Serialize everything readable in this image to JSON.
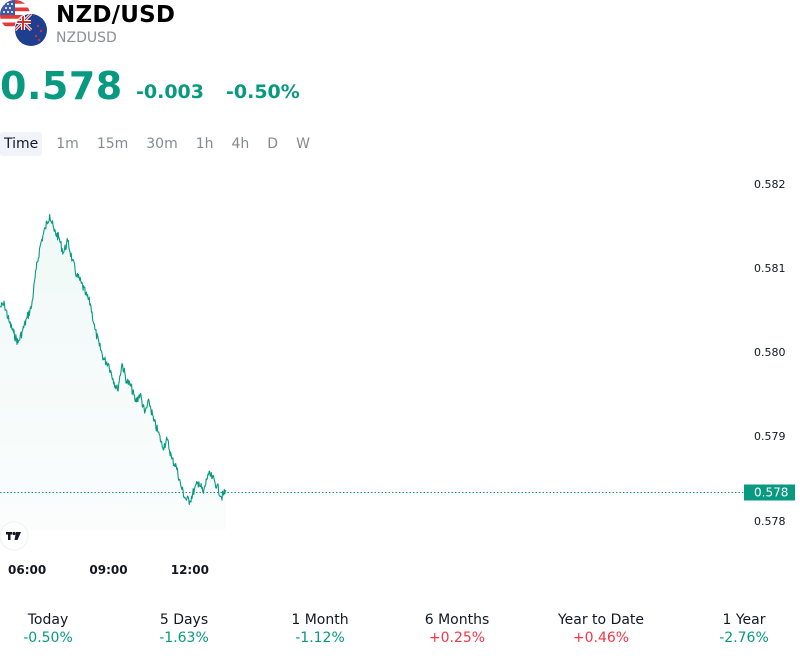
{
  "header": {
    "title": "NZD/USD",
    "symbol": "NZDUSD",
    "icons": [
      "us-flag-icon",
      "nz-flag-icon"
    ]
  },
  "quote": {
    "price": "0.578",
    "change": "-0.003",
    "change_pct": "-0.50%",
    "color": "#089981"
  },
  "timeframes": [
    {
      "label": "Time",
      "active": true
    },
    {
      "label": "1m"
    },
    {
      "label": "15m"
    },
    {
      "label": "30m"
    },
    {
      "label": "1h"
    },
    {
      "label": "4h"
    },
    {
      "label": "D"
    },
    {
      "label": "W"
    }
  ],
  "chart_data": {
    "type": "area",
    "y_ticks": [
      "0.582",
      "0.581",
      "0.580",
      "0.579",
      "0.578"
    ],
    "x_ticks": [
      "06:00",
      "09:00",
      "12:00"
    ],
    "ylim": [
      0.5778,
      0.5822
    ],
    "last_price_label": "0.578",
    "last_price": 0.57816,
    "line_color": "#089981",
    "grid": false,
    "logo_icon": "tradingview-logo-icon",
    "series": [
      {
        "x": [
          "05:00",
          "05:10",
          "05:20",
          "05:30",
          "05:40",
          "05:50",
          "06:00",
          "06:10",
          "06:20",
          "06:30",
          "06:40",
          "06:50",
          "07:00",
          "07:10",
          "07:20",
          "07:30",
          "07:40",
          "07:50",
          "08:00",
          "08:10",
          "08:20",
          "08:30",
          "08:40",
          "08:50",
          "09:00",
          "09:10",
          "09:20",
          "09:30",
          "09:40",
          "09:50",
          "10:00",
          "10:10",
          "10:20",
          "10:30",
          "10:40",
          "10:50",
          "11:00",
          "11:10",
          "11:20",
          "11:30",
          "11:40",
          "11:50",
          "12:00",
          "12:10",
          "12:20",
          "12:30",
          "12:40",
          "12:50",
          "13:00",
          "13:10",
          "13:20"
        ],
        "values": [
          0.58059,
          0.58062,
          0.5804,
          0.58025,
          0.58012,
          0.58028,
          0.58045,
          0.5806,
          0.58108,
          0.58142,
          0.58162,
          0.5818,
          0.58158,
          0.5815,
          0.5813,
          0.58145,
          0.5812,
          0.581,
          0.5809,
          0.58075,
          0.58063,
          0.5803,
          0.58008,
          0.5799,
          0.57985,
          0.57965,
          0.5795,
          0.57985,
          0.57962,
          0.57955,
          0.57935,
          0.57945,
          0.5792,
          0.57935,
          0.5791,
          0.57895,
          0.57875,
          0.57885,
          0.5786,
          0.5785,
          0.57825,
          0.57808,
          0.57805,
          0.5782,
          0.5783,
          0.57815,
          0.5784,
          0.57835,
          0.57825,
          0.5781,
          0.57818
        ]
      }
    ]
  },
  "periods": [
    {
      "label": "Today",
      "value": "-0.50%",
      "trend": "neg"
    },
    {
      "label": "5 Days",
      "value": "-1.63%",
      "trend": "neg"
    },
    {
      "label": "1 Month",
      "value": "-1.12%",
      "trend": "neg"
    },
    {
      "label": "6 Months",
      "value": "+0.25%",
      "trend": "pos"
    },
    {
      "label": "Year to Date",
      "value": "+0.46%",
      "trend": "pos"
    },
    {
      "label": "1 Year",
      "value": "-2.76%",
      "trend": "neg"
    }
  ]
}
